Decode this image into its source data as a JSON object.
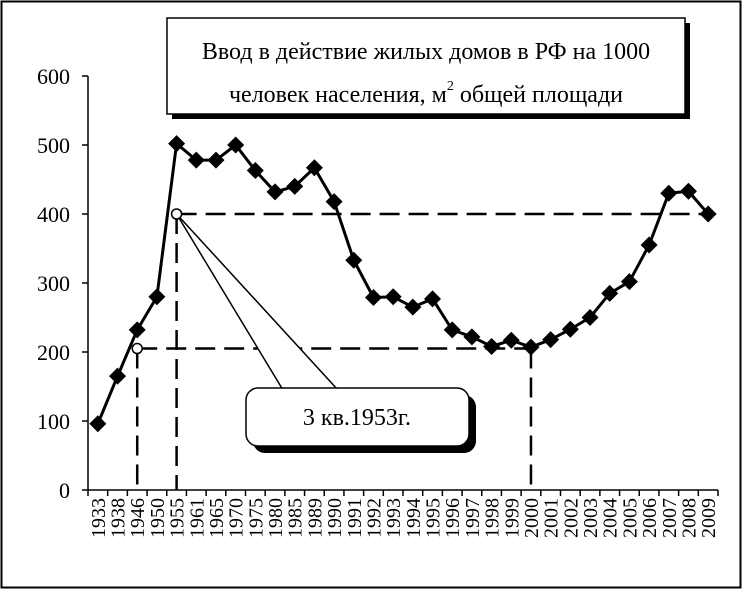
{
  "chart_data": {
    "type": "line",
    "title_line1": "Ввод в действие жилых домов в РФ на 1000",
    "title_line2_pre": "человек населения, м",
    "title_sup": "2",
    "title_line2_post": " общей площади",
    "ylim": [
      0,
      600
    ],
    "yticks": [
      "0",
      "100",
      "200",
      "300",
      "400",
      "500",
      "600"
    ],
    "categories": [
      "1933",
      "1938",
      "1946",
      "1950",
      "1955",
      "1961",
      "1965",
      "1970",
      "1975",
      "1980",
      "1985",
      "1989",
      "1990",
      "1991",
      "1992",
      "1993",
      "1994",
      "1995",
      "1996",
      "1997",
      "1998",
      "1999",
      "2000",
      "2001",
      "2002",
      "2003",
      "2004",
      "2005",
      "2006",
      "2007",
      "2008",
      "2009"
    ],
    "series": [
      {
        "values": [
          96,
          165,
          232,
          280,
          502,
          478,
          478,
          500,
          463,
          432,
          440,
          467,
          418,
          333,
          279,
          280,
          265,
          277,
          232,
          222,
          208,
          217,
          207,
          218,
          233,
          250,
          285,
          302,
          355,
          430,
          433,
          400
        ],
        "color": "#000000"
      }
    ],
    "callout": {
      "label": "3 кв.1953г.",
      "point_low_value": 205,
      "point_high_value": 400
    },
    "reference_lines": [
      {
        "value": 400,
        "from_category": "1955",
        "to_category": "2009"
      },
      {
        "value": 205,
        "from_category": "1946",
        "to_category": "2000"
      }
    ],
    "grid": false,
    "legend": "none"
  }
}
